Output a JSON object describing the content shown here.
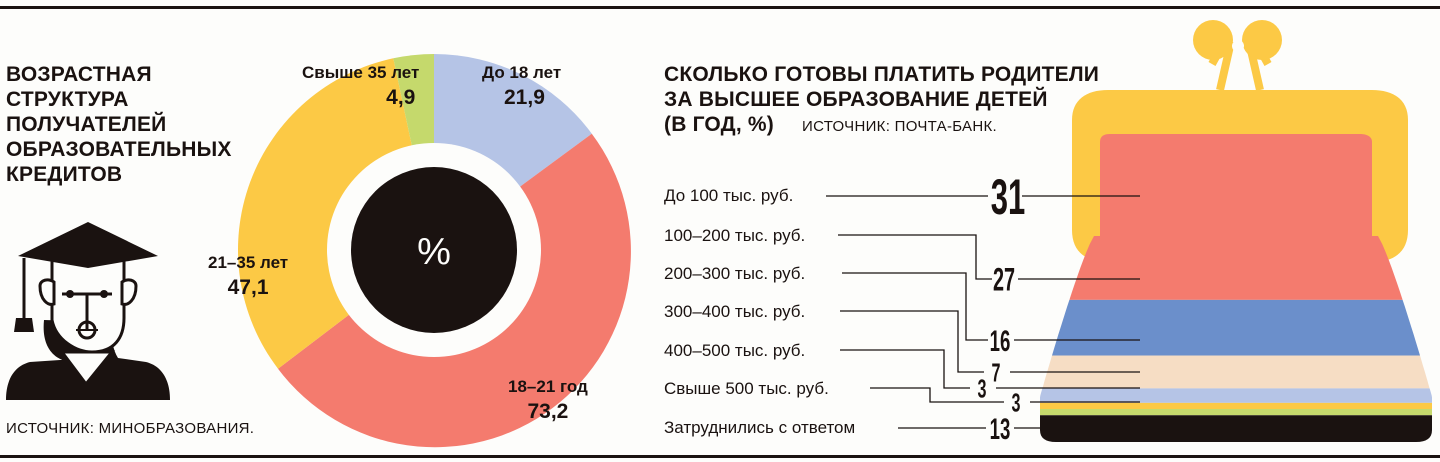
{
  "left": {
    "title_lines": [
      "ВОЗРАСТНАЯ",
      "СТРУКТУРА",
      "ПОЛУЧАТЕЛЕЙ",
      "ОБРАЗОВАТЕЛЬНЫХ",
      "КРЕДИТОВ"
    ],
    "source": "ИСТОЧНИК: МИНОБРАЗОВАНИЯ.",
    "center_label": "%"
  },
  "right": {
    "title_lines": [
      "СКОЛЬКО ГОТОВЫ ПЛАТИТЬ РОДИТЕЛИ",
      "ЗА ВЫСШЕЕ ОБРАЗОВАНИЕ ДЕТЕЙ"
    ],
    "title_line3": "(В ГОД, %)",
    "source": "ИСТОЧНИК: ПОЧТА-БАНК."
  },
  "colors": {
    "dark": "#1a1210",
    "red": "#f47b6e",
    "blue": "#6b8fcb",
    "lightblue": "#b5c4e6",
    "beige": "#f6ddc4",
    "yellow": "#fcc945",
    "green": "#c5d96c",
    "paper": "#fdfdfb"
  },
  "chart_data": [
    {
      "type": "pie",
      "labels": [
        "До 18 лет",
        "18–21 год",
        "21–35 лет",
        "Свыше 35 лет"
      ],
      "values": [
        21.9,
        73.2,
        47.1,
        4.9
      ],
      "value_labels": [
        "21,9",
        "73,2",
        "47,1",
        "4,9"
      ],
      "colors": [
        "#b5c4e6",
        "#f47b6e",
        "#fcc945",
        "#c5d96c"
      ]
    },
    {
      "type": "bar",
      "categories": [
        "До 100 тыс. руб.",
        "100–200 тыс. руб.",
        "200–300 тыс. руб.",
        "300–400 тыс. руб.",
        "400–500 тыс. руб.",
        "Свыше 500 тыс. руб.",
        "Затруднились с ответом"
      ],
      "values": [
        31,
        27,
        16,
        7,
        3,
        3,
        13
      ],
      "colors": [
        "#f47b6e",
        "#6b8fcb",
        "#f6ddc4",
        "#b5c4e6",
        "#fcc945",
        "#c5d96c",
        "#1a1210"
      ]
    }
  ]
}
